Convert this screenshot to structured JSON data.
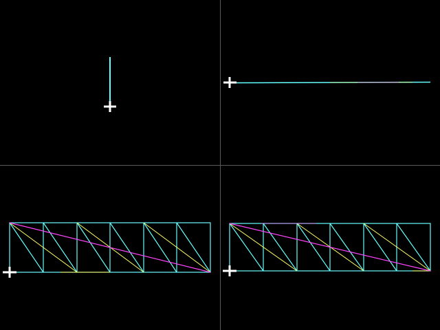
{
  "colors": {
    "background": "#000000",
    "divider": "#5a5a5a",
    "wire_cyan": "#66ffff",
    "wire_yellow": "#ffff66",
    "wire_magenta": "#ff44ff",
    "origin_marker": "#ffffff"
  },
  "icons": {
    "origin_marker": "plus-cross-icon"
  },
  "viewports": [
    {
      "id": "top-left",
      "view": "top",
      "mesh": "edge-on-vertical"
    },
    {
      "id": "top-right",
      "view": "right",
      "mesh": "edge-on-horizontal"
    },
    {
      "id": "bottom-left",
      "view": "front",
      "mesh": "triangulated-strip",
      "segments": 6
    },
    {
      "id": "bottom-right",
      "view": "perspective",
      "mesh": "triangulated-strip",
      "segments": 6
    }
  ]
}
